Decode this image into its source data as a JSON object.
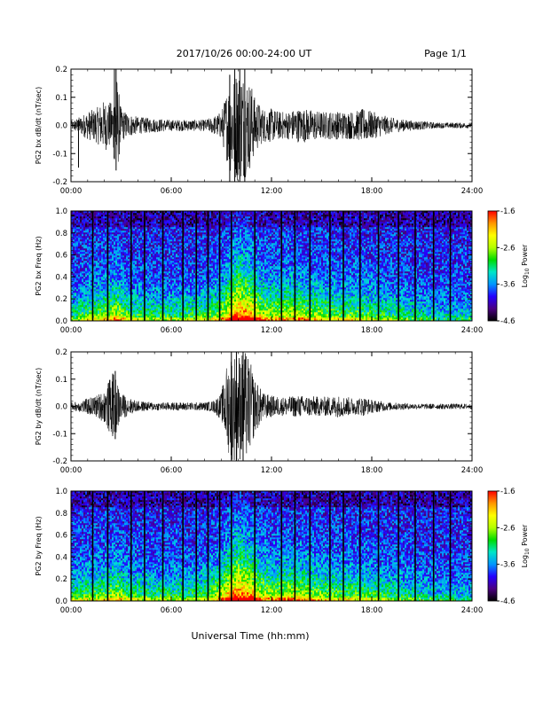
{
  "header": {
    "title": "2017/10/26  00:00-24:00 UT",
    "page": "Page 1/1"
  },
  "xlabel": "Universal Time (hh:mm)",
  "colorbar": {
    "label": "Log10 Power",
    "label_base": "Log",
    "label_sub": "10",
    "label_rest": " Power",
    "ticks": [
      "-1.6",
      "-2.6",
      "-3.6",
      "-4.6"
    ],
    "range": [
      -4.6,
      -1.6
    ],
    "colormap": [
      "#000000",
      "#4b0082",
      "#2400ff",
      "#0096ff",
      "#00e6c8",
      "#00dc00",
      "#b4ff00",
      "#ffff00",
      "#ff9600",
      "#ff0000"
    ]
  },
  "chart_data": [
    {
      "type": "line",
      "name": "panel-bx-dbdt",
      "ylabel": "PG2 bx dB/dt (nT/sec)",
      "xlim_hours": [
        0,
        24
      ],
      "xticks": [
        "00:00",
        "06:00",
        "12:00",
        "18:00",
        "24:00"
      ],
      "ylim": [
        -0.2,
        0.2
      ],
      "yticks": [
        "0.2",
        "0.1",
        "0.0",
        "-0.1",
        "-0.2"
      ],
      "yvalues": [
        0.2,
        0.1,
        0.0,
        -0.1,
        -0.2
      ],
      "envelope": {
        "hours": [
          0,
          0.5,
          1,
          1.5,
          2,
          2.5,
          2.7,
          3,
          3.5,
          4,
          5,
          6,
          7,
          7.5,
          8,
          8.5,
          9,
          9.3,
          9.6,
          9.9,
          10.2,
          10.5,
          10.8,
          11,
          11.5,
          12,
          12.5,
          13,
          13.5,
          14,
          15,
          16,
          17,
          17.5,
          18,
          18.5,
          19,
          20,
          21,
          22,
          23,
          24
        ],
        "amplitude": [
          0.015,
          0.03,
          0.05,
          0.06,
          0.09,
          0.08,
          0.2,
          0.06,
          0.04,
          0.03,
          0.025,
          0.02,
          0.02,
          0.02,
          0.02,
          0.03,
          0.05,
          0.12,
          0.18,
          0.2,
          0.2,
          0.18,
          0.15,
          0.1,
          0.06,
          0.06,
          0.05,
          0.05,
          0.06,
          0.06,
          0.05,
          0.05,
          0.05,
          0.06,
          0.05,
          0.04,
          0.03,
          0.02,
          0.015,
          0.01,
          0.01,
          0.01
        ]
      },
      "spikes": [
        {
          "hour": 0.45,
          "min": -0.15,
          "max": 0.02
        },
        {
          "hour": 2.6,
          "min": -0.12,
          "max": 0.2
        },
        {
          "hour": 2.7,
          "min": -0.16,
          "max": 0.2
        },
        {
          "hour": 9.5,
          "min": -0.2,
          "max": 0.18
        },
        {
          "hour": 9.8,
          "min": -0.2,
          "max": 0.2
        },
        {
          "hour": 10.1,
          "min": -0.2,
          "max": 0.2
        },
        {
          "hour": 10.4,
          "min": -0.2,
          "max": 0.2
        }
      ]
    },
    {
      "type": "heatmap",
      "name": "panel-bx-spectrogram",
      "ylabel": "PG2 bx Freq (Hz)",
      "xlim_hours": [
        0,
        24
      ],
      "xticks": [
        "00:00",
        "06:00",
        "12:00",
        "18:00",
        "24:00"
      ],
      "ylim": [
        0,
        1.0
      ],
      "yticks": [
        "1.0",
        "0.8",
        "0.6",
        "0.4",
        "0.2",
        "0.0"
      ],
      "yvalues": [
        1.0,
        0.8,
        0.6,
        0.4,
        0.2,
        0.0
      ],
      "activity": {
        "hours": [
          0,
          1,
          2,
          2.7,
          3.5,
          5,
          6,
          7,
          8,
          9,
          9.5,
          10,
          10.5,
          11,
          11.5,
          12,
          13,
          14,
          15,
          16,
          17,
          18,
          19,
          20,
          21,
          22,
          23,
          24
        ],
        "level": [
          0.4,
          0.5,
          0.6,
          0.7,
          0.5,
          0.45,
          0.45,
          0.45,
          0.5,
          0.65,
          0.85,
          1.0,
          0.95,
          0.85,
          0.7,
          0.65,
          0.7,
          0.65,
          0.6,
          0.55,
          0.55,
          0.5,
          0.45,
          0.4,
          0.35,
          0.3,
          0.3,
          0.3
        ]
      },
      "gap_lines_hours": [
        1.3,
        2.2,
        3.6,
        4.4,
        5.5,
        6.7,
        7.5,
        8.2,
        8.9,
        9.6,
        11.0,
        12.6,
        13.4,
        14.3,
        15.5,
        16.3,
        17.3,
        18.4,
        19.6,
        20.6,
        21.7,
        22.7
      ]
    },
    {
      "type": "line",
      "name": "panel-by-dbdt",
      "ylabel": "PG2 by dB/dt (nT/sec)",
      "xlim_hours": [
        0,
        24
      ],
      "xticks": [
        "00:00",
        "06:00",
        "12:00",
        "18:00",
        "24:00"
      ],
      "ylim": [
        -0.2,
        0.2
      ],
      "yticks": [
        "0.2",
        "0.1",
        "0.0",
        "-0.1",
        "-0.2"
      ],
      "yvalues": [
        0.2,
        0.1,
        0.0,
        -0.1,
        -0.2
      ],
      "envelope": {
        "hours": [
          0,
          0.5,
          1,
          1.5,
          2,
          2.3,
          2.6,
          3,
          3.5,
          4,
          5,
          6,
          7,
          7.5,
          8,
          8.5,
          9,
          9.3,
          9.6,
          9.9,
          10.2,
          10.5,
          10.8,
          11,
          11.5,
          12,
          12.5,
          13,
          13.5,
          14,
          15,
          16,
          17,
          17.5,
          18,
          18.5,
          19,
          20,
          21,
          22,
          23,
          24
        ],
        "amplitude": [
          0.015,
          0.02,
          0.03,
          0.04,
          0.06,
          0.1,
          0.12,
          0.05,
          0.03,
          0.02,
          0.015,
          0.015,
          0.015,
          0.015,
          0.015,
          0.02,
          0.05,
          0.15,
          0.2,
          0.2,
          0.2,
          0.2,
          0.15,
          0.1,
          0.05,
          0.04,
          0.035,
          0.035,
          0.04,
          0.04,
          0.035,
          0.04,
          0.03,
          0.035,
          0.025,
          0.02,
          0.015,
          0.012,
          0.01,
          0.01,
          0.01,
          0.01
        ]
      },
      "spikes": [
        {
          "hour": 2.5,
          "min": -0.1,
          "max": 0.12
        },
        {
          "hour": 2.65,
          "min": -0.12,
          "max": 0.13
        },
        {
          "hour": 9.6,
          "min": -0.2,
          "max": 0.2
        },
        {
          "hour": 9.9,
          "min": -0.2,
          "max": 0.2
        },
        {
          "hour": 10.3,
          "min": -0.2,
          "max": 0.2
        }
      ]
    },
    {
      "type": "heatmap",
      "name": "panel-by-spectrogram",
      "ylabel": "PG2 by Freq (Hz)",
      "xlim_hours": [
        0,
        24
      ],
      "xticks": [
        "00:00",
        "06:00",
        "12:00",
        "18:00",
        "24:00"
      ],
      "ylim": [
        0,
        1.0
      ],
      "yticks": [
        "1.0",
        "0.8",
        "0.6",
        "0.4",
        "0.2",
        "0.0"
      ],
      "yvalues": [
        1.0,
        0.8,
        0.6,
        0.4,
        0.2,
        0.0
      ],
      "activity": {
        "hours": [
          0,
          1,
          2,
          2.7,
          3.5,
          5,
          6,
          7,
          8,
          9,
          9.5,
          10,
          10.5,
          11,
          11.5,
          12,
          13,
          14,
          15,
          16,
          17,
          18,
          19,
          20,
          21,
          22,
          23,
          24
        ],
        "level": [
          0.45,
          0.5,
          0.55,
          0.65,
          0.5,
          0.45,
          0.45,
          0.45,
          0.5,
          0.7,
          0.9,
          1.0,
          0.95,
          0.85,
          0.7,
          0.65,
          0.7,
          0.65,
          0.6,
          0.55,
          0.55,
          0.5,
          0.45,
          0.4,
          0.35,
          0.3,
          0.3,
          0.3
        ]
      },
      "gap_lines_hours": [
        1.3,
        2.2,
        3.6,
        4.4,
        5.5,
        6.7,
        7.5,
        8.2,
        8.9,
        9.6,
        11.0,
        12.6,
        13.4,
        14.3,
        15.5,
        16.3,
        17.3,
        18.4,
        19.6,
        20.6,
        21.7,
        22.7
      ]
    }
  ]
}
